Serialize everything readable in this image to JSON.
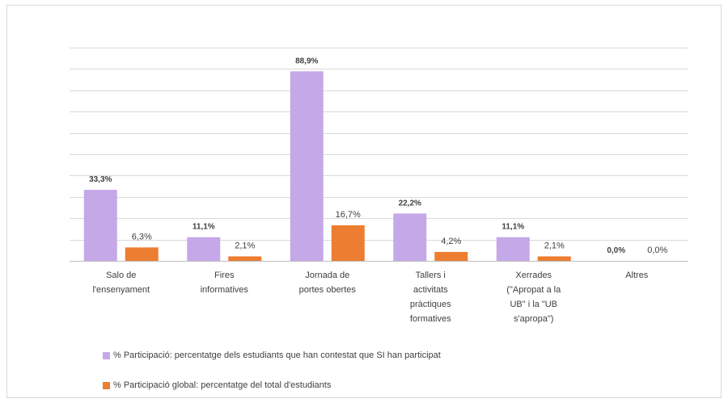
{
  "chart_data": {
    "type": "bar",
    "categories": [
      [
        "Salo de",
        "l'ensenyament"
      ],
      [
        "Fires",
        "informatives"
      ],
      [
        "Jornada de",
        "portes obertes"
      ],
      [
        "Tallers i",
        "activitats",
        "pràctiques",
        "formatives"
      ],
      [
        "Xerrades",
        "(\"Apropat a la",
        "UB\" i la \"UB",
        "s'apropa\")"
      ],
      [
        "Altres"
      ]
    ],
    "series": [
      {
        "name": "% Participació: percentatge dels estudiants que han contestat que SI han participat",
        "values": [
          33.3,
          11.1,
          88.9,
          22.2,
          11.1,
          0.0
        ],
        "labels": [
          "33,3%",
          "11,1%",
          "88,9%",
          "22,2%",
          "11,1%",
          "0,0%"
        ],
        "color": "#c5a8e8"
      },
      {
        "name": "% Participació global: percentatge del total d'estudiants",
        "values": [
          6.3,
          2.1,
          16.7,
          4.2,
          2.1,
          0.0
        ],
        "labels": [
          "6,3%",
          "2,1%",
          "16,7%",
          "4,2%",
          "2,1%",
          "0,0%"
        ],
        "color": "#ed7d31"
      }
    ],
    "ylim": [
      0,
      100
    ],
    "grid": true,
    "legend_position": "bottom-left"
  }
}
